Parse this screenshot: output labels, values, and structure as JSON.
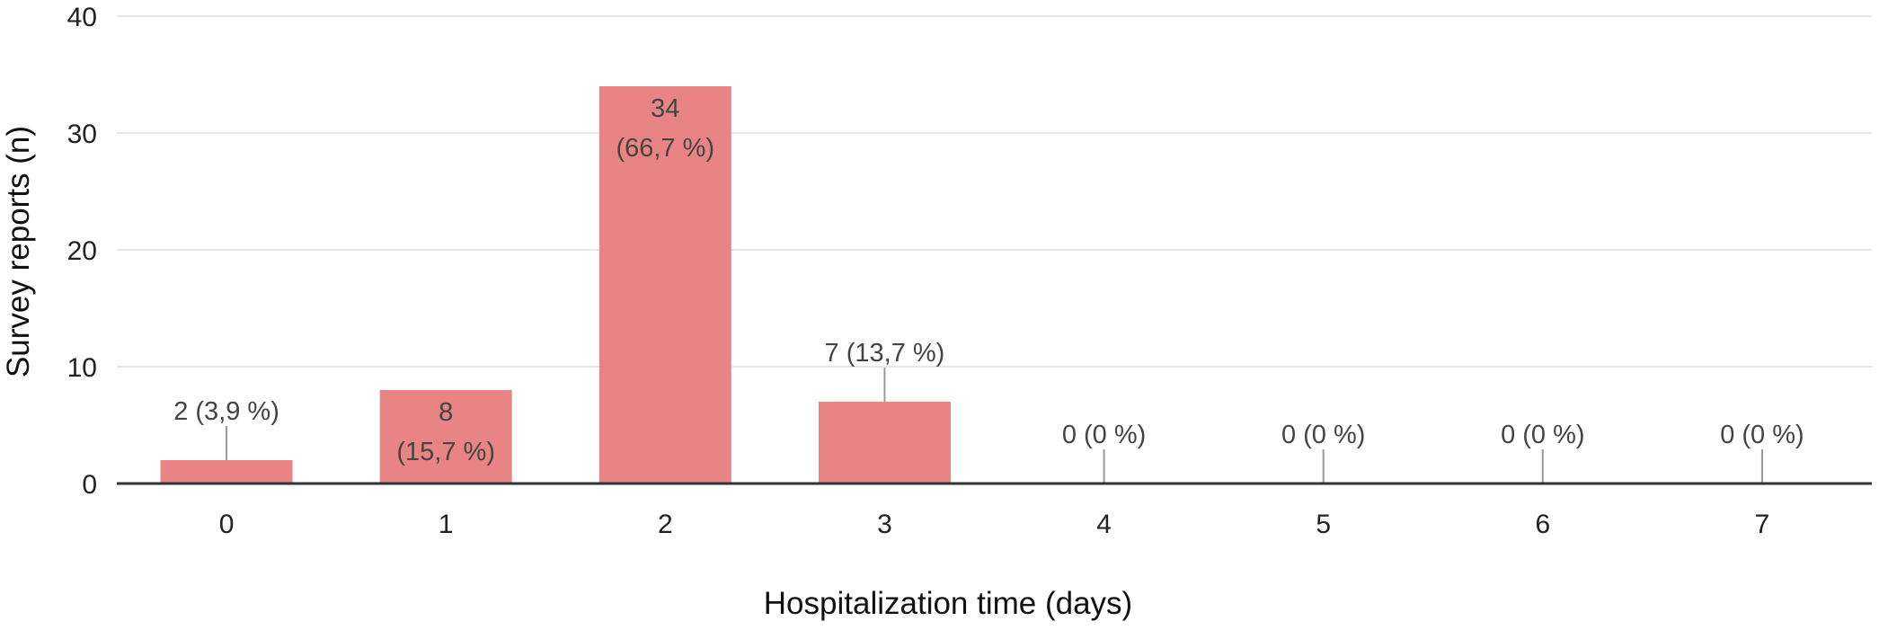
{
  "chart_data": {
    "type": "bar",
    "categories": [
      "0",
      "1",
      "2",
      "3",
      "4",
      "5",
      "6",
      "7"
    ],
    "values": [
      2,
      8,
      34,
      7,
      0,
      0,
      0,
      0
    ],
    "data_labels": [
      [
        "2 (3,9 %)"
      ],
      [
        "8",
        "(15,7 %)"
      ],
      [
        "34",
        "(66,7 %)"
      ],
      [
        "7 (13,7 %)"
      ],
      [
        "0 (0 %)"
      ],
      [
        "0 (0 %)"
      ],
      [
        "0 (0 %)"
      ],
      [
        "0 (0 %)"
      ]
    ],
    "label_position": [
      "above",
      "inside",
      "inside",
      "above",
      "above",
      "above",
      "above",
      "above"
    ],
    "xlabel": "Hospitalization time (days)",
    "ylabel": "Survey reports (n)",
    "ylim": [
      0,
      40
    ],
    "yticks": [
      0,
      10,
      20,
      30,
      40
    ],
    "grid": true,
    "bar_color": "#e98484",
    "grid_color": "#e6e6e6",
    "axis_color": "#333333"
  }
}
